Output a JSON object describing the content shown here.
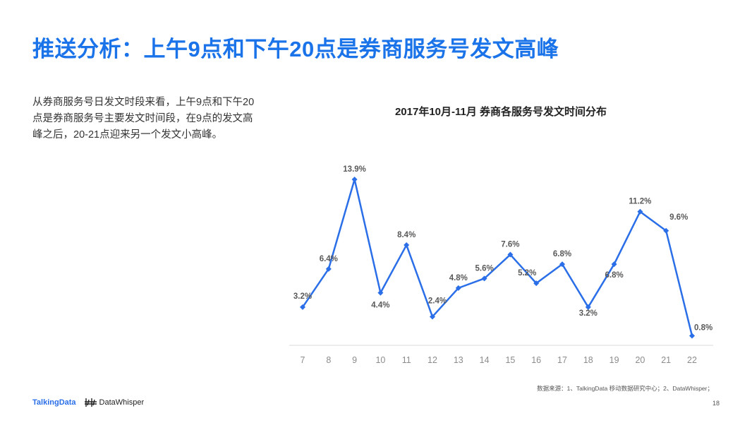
{
  "slide": {
    "title": "推送分析：上午9点和下午20点是券商服务号发文高峰",
    "description": "从券商服务号日发文时段来看，上午9点和下午20点是券商服务号主要发文时间段，在9点的发文高峰之后，20-21点迎来另一个发文小高峰。",
    "source": "数据来源：1、TalkingData 移动数据研究中心；2、DataWhisper；",
    "page_number": "18",
    "brand_left": "TalkingData",
    "brand_right": "DataWhisper"
  },
  "colors": {
    "title": "#1a73e8",
    "line": "#2a6ee8",
    "axis": "#d9d9d9",
    "label": "#595959"
  },
  "chart_data": {
    "type": "line",
    "title": "2017年10月-11月 券商各服务号发文时间分布",
    "categories": [
      "7",
      "8",
      "9",
      "10",
      "11",
      "12",
      "13",
      "14",
      "15",
      "16",
      "17",
      "18",
      "19",
      "20",
      "21",
      "22"
    ],
    "series": [
      {
        "values": [
          3.2,
          6.4,
          13.9,
          4.4,
          8.4,
          2.4,
          4.8,
          5.6,
          7.6,
          5.2,
          6.8,
          3.2,
          6.8,
          11.2,
          9.6,
          0.8
        ],
        "labels": [
          "3.2%",
          "6.4%",
          "13.9%",
          "4.4%",
          "8.4%",
          "2.4%",
          "4.8%",
          "5.6%",
          "7.6%",
          "5.2%",
          "6.8%",
          "3.2%",
          "6.8%",
          "11.2%",
          "9.6%",
          "0.8%"
        ]
      }
    ],
    "ylim": [
      0,
      14
    ],
    "unit": "%",
    "grid": false,
    "legend": "none"
  }
}
